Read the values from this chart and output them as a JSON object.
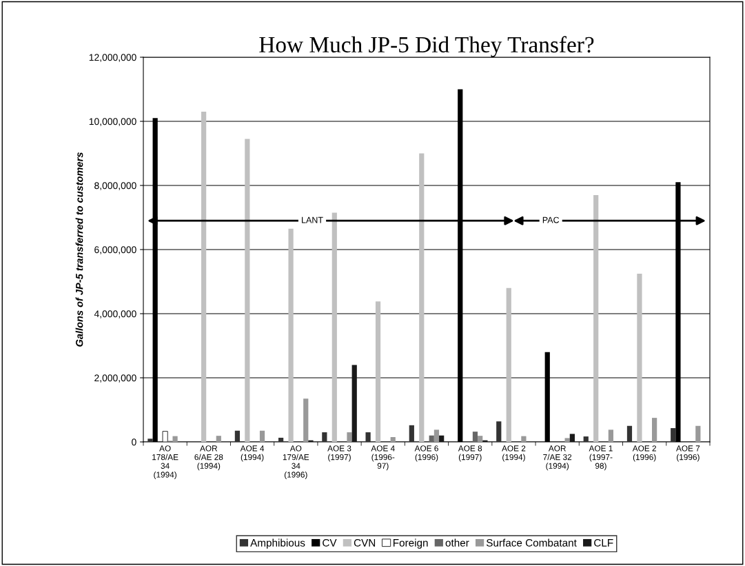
{
  "chart_data": {
    "type": "bar",
    "title": "How Much JP-5 Did They Transfer?",
    "ylabel": "Gallons of JP-5 transferred to customers",
    "categories": [
      "AO\n178/AE\n34\n(1994)",
      "AOR\n6/AE 28\n(1994)",
      "AOE 4\n(1994)",
      "AO\n179/AE\n34\n(1996)",
      "AOE 3\n(1997)",
      "AOE 4\n(1996-\n97)",
      "AOE 6\n(1996)",
      "AOE 8\n(1997)",
      "AOE 2\n(1994)",
      "AOR\n7/AE 32\n(1994)",
      "AOE 1\n(1997-\n98)",
      "AOE 2\n(1996)",
      "AOE 7\n(1996)"
    ],
    "series": [
      {
        "name": "Amphibious",
        "color": "#333333",
        "values": [
          100000,
          null,
          350000,
          130000,
          300000,
          300000,
          520000,
          null,
          640000,
          null,
          170000,
          500000,
          430000
        ]
      },
      {
        "name": "CV",
        "color": "#000000",
        "values": [
          10100000,
          null,
          null,
          null,
          null,
          null,
          null,
          11000000,
          null,
          2800000,
          null,
          null,
          8100000
        ]
      },
      {
        "name": "CVN",
        "color": "#c0c0c0",
        "values": [
          null,
          10300000,
          9450000,
          6650000,
          7150000,
          4380000,
          9000000,
          null,
          4800000,
          null,
          7700000,
          5250000,
          null
        ]
      },
      {
        "name": "Foreign",
        "color": "#ffffff",
        "values": [
          330000,
          null,
          null,
          null,
          null,
          null,
          null,
          null,
          null,
          null,
          null,
          null,
          null
        ]
      },
      {
        "name": "other",
        "color": "#666666",
        "values": [
          30000,
          null,
          null,
          null,
          null,
          null,
          200000,
          320000,
          null,
          null,
          null,
          null,
          null
        ]
      },
      {
        "name": "Surface Combatant",
        "color": "#999999",
        "values": [
          180000,
          190000,
          350000,
          1350000,
          300000,
          150000,
          380000,
          190000,
          180000,
          120000,
          380000,
          750000,
          500000
        ]
      },
      {
        "name": "CLF",
        "color": "#1a1a1a",
        "values": [
          null,
          null,
          null,
          50000,
          2400000,
          null,
          200000,
          50000,
          null,
          250000,
          null,
          null,
          null
        ]
      }
    ],
    "ylim": [
      0,
      12000000
    ],
    "yticks": [
      0,
      {
        "value": 2000000,
        "label": "2,000,000"
      },
      {
        "value": 4000000,
        "label": "4,000,000"
      },
      {
        "value": 6000000,
        "label": "6,000,000"
      },
      {
        "value": 8000000,
        "label": "8,000,000"
      },
      {
        "value": 10000000,
        "label": "10,000,000"
      },
      {
        "value": 12000000,
        "label": "12,000,000"
      }
    ],
    "grid": "y",
    "legend": "bottom",
    "annotations": [
      "LANT",
      "PAC"
    ]
  }
}
